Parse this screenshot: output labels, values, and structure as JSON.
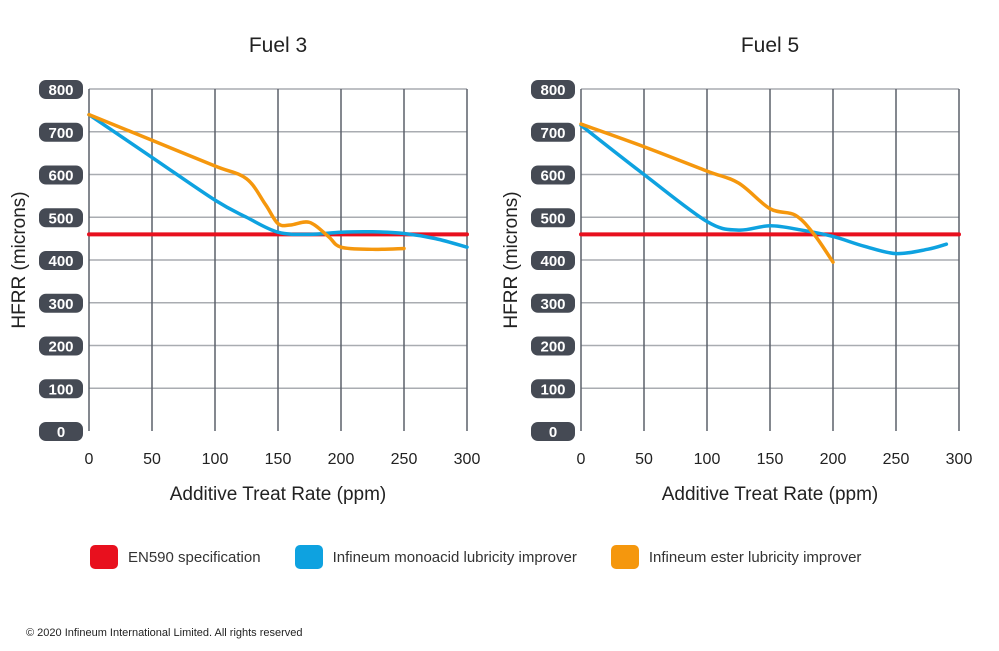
{
  "chart_data": [
    {
      "type": "line",
      "title": "Fuel 3",
      "xlabel": "Additive Treat Rate (ppm)",
      "ylabel": "HFRR (microns)",
      "xlim": [
        0,
        300
      ],
      "ylim": [
        0,
        800
      ],
      "xticks": [
        0,
        50,
        100,
        150,
        200,
        250,
        300
      ],
      "yticks": [
        0,
        100,
        200,
        300,
        400,
        500,
        600,
        700,
        800
      ],
      "grid": true,
      "series": [
        {
          "name": "EN590 specification",
          "color": "#e8101e",
          "x": [
            0,
            300
          ],
          "y": [
            460,
            460
          ]
        },
        {
          "name": "Infineum monoacid lubricity improver",
          "color": "#0ea2e0",
          "x": [
            0,
            50,
            100,
            125,
            150,
            175,
            200,
            225,
            250,
            275,
            300
          ],
          "y": [
            740,
            640,
            540,
            500,
            465,
            460,
            465,
            466,
            462,
            450,
            430
          ]
        },
        {
          "name": "Infineum ester lubricity improver",
          "color": "#f5970d",
          "x": [
            0,
            50,
            100,
            125,
            140,
            150,
            160,
            175,
            190,
            200,
            225,
            250
          ],
          "y": [
            740,
            680,
            620,
            590,
            530,
            485,
            482,
            488,
            455,
            430,
            425,
            427
          ]
        }
      ]
    },
    {
      "type": "line",
      "title": "Fuel 5",
      "xlabel": "Additive Treat Rate (ppm)",
      "ylabel": "HFRR (microns)",
      "xlim": [
        0,
        300
      ],
      "ylim": [
        0,
        800
      ],
      "xticks": [
        0,
        50,
        100,
        150,
        200,
        250,
        300
      ],
      "yticks": [
        0,
        100,
        200,
        300,
        400,
        500,
        600,
        700,
        800
      ],
      "grid": true,
      "series": [
        {
          "name": "EN590 specification",
          "color": "#e8101e",
          "x": [
            0,
            300
          ],
          "y": [
            460,
            460
          ]
        },
        {
          "name": "Infineum monoacid lubricity improver",
          "color": "#0ea2e0",
          "x": [
            0,
            50,
            100,
            125,
            150,
            175,
            200,
            225,
            250,
            275,
            290
          ],
          "y": [
            715,
            600,
            490,
            470,
            480,
            470,
            455,
            432,
            415,
            425,
            437
          ]
        },
        {
          "name": "Infineum ester lubricity improver",
          "color": "#f5970d",
          "x": [
            0,
            50,
            100,
            125,
            150,
            170,
            185,
            200
          ],
          "y": [
            718,
            665,
            608,
            580,
            520,
            505,
            460,
            395
          ]
        }
      ]
    }
  ],
  "legend": [
    {
      "label": "EN590 specification",
      "color": "#e8101e"
    },
    {
      "label": "Infineum monoacid lubricity improver",
      "color": "#0ea2e0"
    },
    {
      "label": "Infineum ester lubricity improver",
      "color": "#f5970d"
    }
  ],
  "copyright": "© 2020  Infineum International Limited. All rights reserved"
}
